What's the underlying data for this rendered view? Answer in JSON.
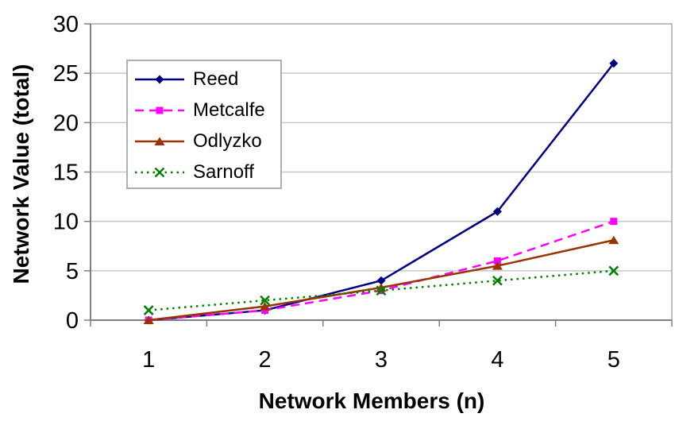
{
  "chart_data": {
    "type": "line",
    "title": "",
    "xlabel": "Network Members (n)",
    "ylabel": "Network Value (total)",
    "x": [
      1,
      2,
      3,
      4,
      5
    ],
    "x_tick_labels": [
      "1",
      "2",
      "3",
      "4",
      "5"
    ],
    "y_ticks": [
      0,
      5,
      10,
      15,
      20,
      25,
      30
    ],
    "ylim": [
      0,
      30
    ],
    "grid": "horizontal",
    "legend_position": "upper-left-inside",
    "legend_order": [
      "Reed",
      "Metcalfe",
      "Odlyzko",
      "Sarnoff"
    ],
    "series": [
      {
        "name": "Reed",
        "values": [
          0,
          1,
          4,
          11,
          26
        ],
        "color": "#000080",
        "line_style": "solid",
        "marker": "diamond"
      },
      {
        "name": "Metcalfe",
        "values": [
          0,
          1,
          3,
          6,
          10
        ],
        "color": "#FF00FF",
        "line_style": "dashed",
        "marker": "square"
      },
      {
        "name": "Odlyzko",
        "values": [
          0,
          1.4,
          3.3,
          5.5,
          8.1
        ],
        "color": "#993300",
        "line_style": "solid",
        "marker": "triangle"
      },
      {
        "name": "Sarnoff",
        "values": [
          1,
          2,
          3,
          4,
          5
        ],
        "color": "#008000",
        "line_style": "dotted",
        "marker": "x"
      }
    ],
    "colors": {
      "background": "#FFFFFF",
      "gridline": "#C6C6C6",
      "plot_border": "#ABABAB",
      "axis": "#808080",
      "text": "#000000",
      "legend_border": "#AEAEAE"
    }
  }
}
